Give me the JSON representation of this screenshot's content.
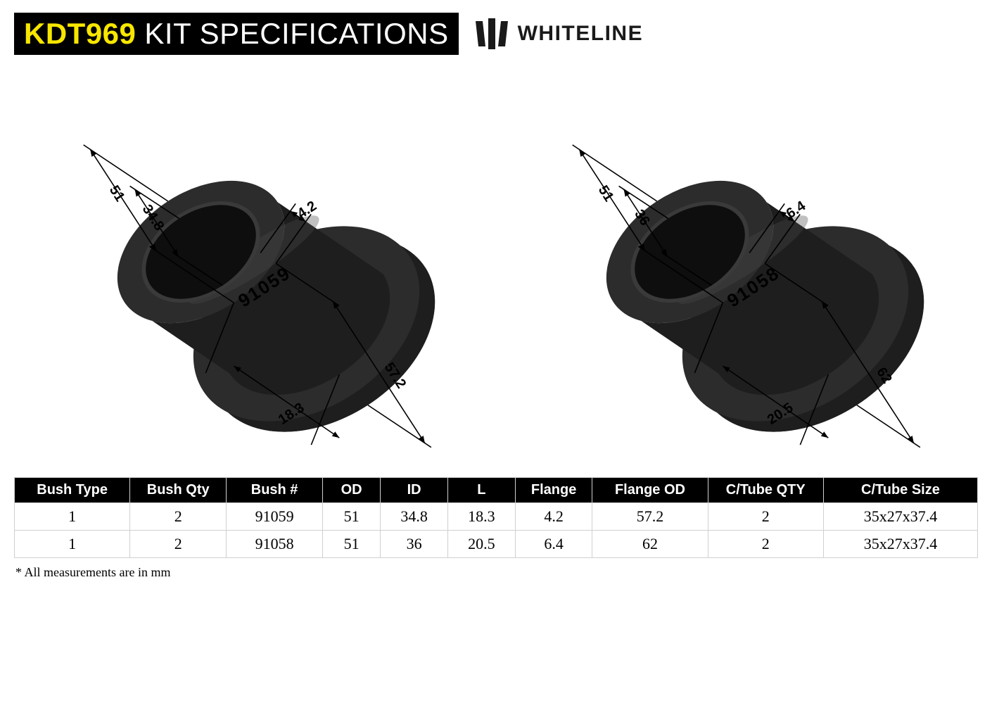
{
  "header": {
    "kit_code": "KDT969",
    "kit_code_color": "#f7e600",
    "kit_spec_label": "KIT SPECIFICATIONS",
    "brand_name": "WHITELINE",
    "brand_color": "#1a1a1a",
    "title_bg": "#000000"
  },
  "diagrams": [
    {
      "part_number": "91059",
      "dims": {
        "outer_diameter": "51",
        "inner_diameter": "34.8",
        "length": "18.3",
        "flange_thickness": "4.2",
        "flange_od": "57.2"
      },
      "styling": {
        "body_fill": "#1e1e1e",
        "face_fill": "#2c2c2c",
        "bore_fill": "#0e0e0e",
        "bore_rim": "#3a3a3a",
        "highlight": "#4a4a4a",
        "dim_line_color": "#000000",
        "dim_text_color": "#000000",
        "part_text_color": "#000000",
        "dim_fontsize": 20,
        "part_fontsize": 26
      }
    },
    {
      "part_number": "91058",
      "dims": {
        "outer_diameter": "51",
        "inner_diameter": "36",
        "length": "20.5",
        "flange_thickness": "6.4",
        "flange_od": "62"
      },
      "styling": {
        "body_fill": "#1e1e1e",
        "face_fill": "#2c2c2c",
        "bore_fill": "#0e0e0e",
        "bore_rim": "#3a3a3a",
        "highlight": "#4a4a4a",
        "dim_line_color": "#000000",
        "dim_text_color": "#000000",
        "part_text_color": "#000000",
        "dim_fontsize": 20,
        "part_fontsize": 26
      }
    }
  ],
  "table": {
    "columns": [
      "Bush Type",
      "Bush Qty",
      "Bush #",
      "OD",
      "ID",
      "L",
      "Flange",
      "Flange OD",
      "C/Tube QTY",
      "C/Tube Size"
    ],
    "column_widths_pct": [
      12,
      10,
      10,
      6,
      7,
      7,
      8,
      12,
      12,
      16
    ],
    "rows": [
      [
        "1",
        "2",
        "91059",
        "51",
        "34.8",
        "18.3",
        "4.2",
        "57.2",
        "2",
        "35x27x37.4"
      ],
      [
        "1",
        "2",
        "91058",
        "51",
        "36",
        "20.5",
        "6.4",
        "62",
        "2",
        "35x27x37.4"
      ]
    ],
    "header_bg": "#000000",
    "header_fg": "#ffffff",
    "cell_border": "#d0d0d0",
    "cell_font": "Times New Roman",
    "header_fontsize": 20,
    "cell_fontsize": 22
  },
  "footnote": "* All measurements are in mm"
}
